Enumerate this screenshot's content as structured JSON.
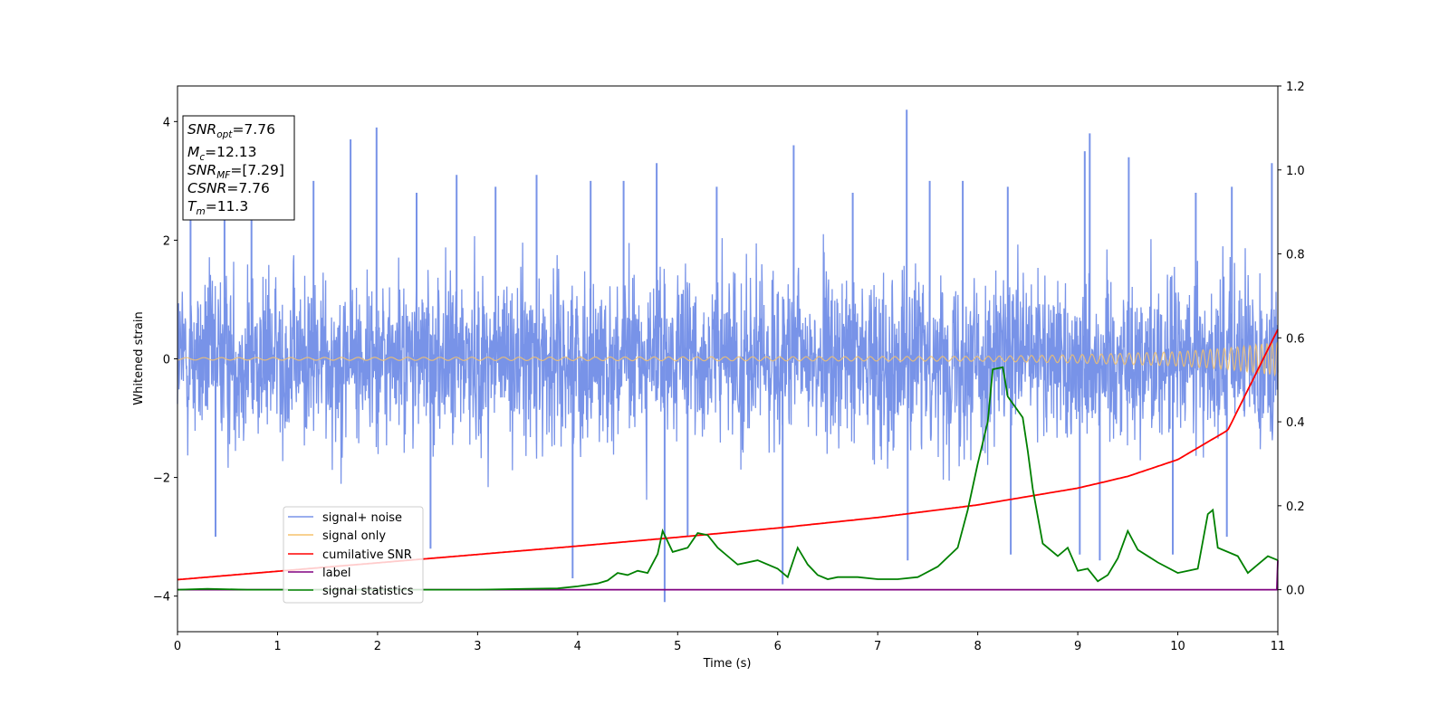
{
  "chart_data": {
    "type": "line",
    "xlabel": "Time (s)",
    "ylabel": "Whitened strain",
    "xlim": [
      0,
      11
    ],
    "ylim": [
      -4.6,
      4.6
    ],
    "y2lim": [
      -0.1,
      1.2
    ],
    "xticks": [
      "0",
      "1",
      "2",
      "3",
      "4",
      "5",
      "6",
      "7",
      "8",
      "9",
      "10",
      "11"
    ],
    "yticks": [
      "4",
      "2",
      "0",
      "−2",
      "−4"
    ],
    "y2ticks": [
      "1.2",
      "1.0",
      "0.8",
      "0.6",
      "0.4",
      "0.2",
      "0.0"
    ],
    "grid": false,
    "legend_position": "lower-left",
    "info_box": {
      "position": "top-left",
      "lines": [
        {
          "main": "SNR",
          "sub": "opt",
          "value": "=7.76"
        },
        {
          "main": "M",
          "sub": "c",
          "value": "=12.13"
        },
        {
          "main": "SNR",
          "sub": "MF",
          "value": "=[7.29]"
        },
        {
          "main": "CSNR",
          "sub": "",
          "value": "=7.76"
        },
        {
          "main": "T",
          "sub": "m",
          "value": "=11.3"
        }
      ]
    },
    "series": [
      {
        "name": "signal+ noise",
        "axis": "left",
        "color": "#7893e8",
        "style": "dense gaussian noise, sigma approx 0.9",
        "spikes": [
          [
            0.13,
            3.5
          ],
          [
            0.47,
            2.9
          ],
          [
            0.74,
            3.2
          ],
          [
            1.36,
            3.0
          ],
          [
            1.73,
            3.7
          ],
          [
            1.99,
            3.9
          ],
          [
            2.39,
            2.8
          ],
          [
            2.79,
            3.1
          ],
          [
            3.18,
            2.9
          ],
          [
            3.59,
            3.1
          ],
          [
            4.13,
            3.0
          ],
          [
            4.46,
            3.0
          ],
          [
            4.79,
            3.3
          ],
          [
            5.39,
            2.9
          ],
          [
            6.16,
            3.6
          ],
          [
            6.75,
            2.8
          ],
          [
            7.29,
            4.2
          ],
          [
            7.52,
            3.0
          ],
          [
            7.85,
            3.0
          ],
          [
            8.3,
            2.9
          ],
          [
            9.07,
            3.5
          ],
          [
            9.12,
            3.8
          ],
          [
            9.51,
            3.4
          ],
          [
            10.18,
            2.8
          ],
          [
            10.54,
            2.9
          ],
          [
            10.94,
            3.3
          ],
          [
            3.95,
            -3.7
          ],
          [
            4.87,
            -4.1
          ],
          [
            6.05,
            -3.8
          ],
          [
            7.3,
            -3.4
          ],
          [
            8.33,
            -3.3
          ],
          [
            9.02,
            -3.3
          ],
          [
            9.22,
            -3.4
          ],
          [
            9.95,
            -3.3
          ],
          [
            0.38,
            -3.0
          ],
          [
            2.53,
            -3.2
          ],
          [
            5.1,
            -3.0
          ],
          [
            10.49,
            -3.0
          ]
        ]
      },
      {
        "name": "signal only",
        "axis": "left",
        "color": "#f5c26b",
        "style": "chirp oscillation, amplitude growing toward merger",
        "x": [
          0,
          8,
          9,
          10,
          10.5,
          11
        ],
        "amplitude": [
          0.02,
          0.04,
          0.07,
          0.12,
          0.18,
          0.28
        ]
      },
      {
        "name": "cumilative SNR",
        "axis": "right",
        "color": "#ff0000",
        "x": [
          0,
          1,
          2,
          3,
          4,
          5,
          6,
          7,
          8,
          9,
          9.5,
          10,
          10.5,
          11
        ],
        "y": [
          0.024,
          0.044,
          0.064,
          0.084,
          0.104,
          0.125,
          0.147,
          0.172,
          0.202,
          0.242,
          0.27,
          0.31,
          0.38,
          0.62
        ]
      },
      {
        "name": "label",
        "axis": "right",
        "color": "#800080",
        "x": [
          0,
          10.99,
          11
        ],
        "y": [
          0,
          0,
          0.07
        ]
      },
      {
        "name": "signal statistics",
        "axis": "right",
        "color": "#008000",
        "x": [
          0,
          0.3,
          0.7,
          1.0,
          2.0,
          3.0,
          3.5,
          3.8,
          4.0,
          4.2,
          4.3,
          4.4,
          4.5,
          4.6,
          4.7,
          4.8,
          4.85,
          4.95,
          5.1,
          5.2,
          5.3,
          5.4,
          5.5,
          5.6,
          5.8,
          6.0,
          6.1,
          6.2,
          6.3,
          6.4,
          6.5,
          6.6,
          6.8,
          7.0,
          7.2,
          7.4,
          7.6,
          7.8,
          7.9,
          8.0,
          8.1,
          8.15,
          8.25,
          8.3,
          8.45,
          8.5,
          8.55,
          8.65,
          8.8,
          8.9,
          9.0,
          9.1,
          9.2,
          9.3,
          9.4,
          9.5,
          9.6,
          9.8,
          10.0,
          10.1,
          10.2,
          10.3,
          10.35,
          10.4,
          10.6,
          10.7,
          10.8,
          10.9,
          11.0
        ],
        "y": [
          0.0,
          0.002,
          0.0,
          0.0,
          0.0,
          0.0,
          0.002,
          0.003,
          0.008,
          0.015,
          0.022,
          0.04,
          0.035,
          0.045,
          0.04,
          0.085,
          0.14,
          0.09,
          0.1,
          0.135,
          0.13,
          0.1,
          0.08,
          0.06,
          0.07,
          0.05,
          0.03,
          0.1,
          0.06,
          0.035,
          0.025,
          0.03,
          0.03,
          0.025,
          0.025,
          0.03,
          0.055,
          0.1,
          0.19,
          0.3,
          0.4,
          0.525,
          0.53,
          0.46,
          0.41,
          0.33,
          0.24,
          0.11,
          0.08,
          0.1,
          0.045,
          0.05,
          0.02,
          0.035,
          0.075,
          0.14,
          0.095,
          0.065,
          0.04,
          0.045,
          0.05,
          0.18,
          0.19,
          0.1,
          0.08,
          0.04,
          0.06,
          0.08,
          0.07
        ]
      }
    ]
  }
}
